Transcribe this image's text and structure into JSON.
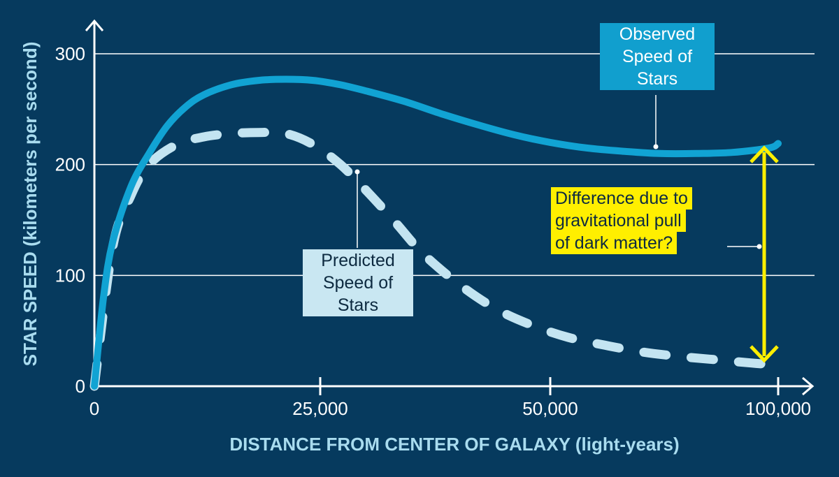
{
  "chart_data": {
    "type": "line",
    "xlabel": "DISTANCE FROM CENTER OF GALAXY",
    "xlabel_unit": "(light-years)",
    "ylabel": "STAR SPEED",
    "ylabel_unit": "(kilometers per second)",
    "x_tick_labels": [
      "0",
      "25,000",
      "50,000",
      "100,000"
    ],
    "y_tick_labels": [
      "0",
      "100",
      "200",
      "300"
    ],
    "y_ticks": [
      0,
      100,
      200,
      300
    ],
    "ylim": [
      0,
      300
    ],
    "grid": true,
    "series": [
      {
        "name": "Observed Speed of Stars",
        "style": "solid",
        "color": "#11a3d3",
        "points": [
          [
            0,
            0
          ],
          [
            1,
            80
          ],
          [
            2,
            130
          ],
          [
            4,
            180
          ],
          [
            6,
            210
          ],
          [
            8,
            235
          ],
          [
            10,
            252
          ],
          [
            12,
            263
          ],
          [
            15,
            272
          ],
          [
            18,
            276
          ],
          [
            21,
            277
          ],
          [
            24,
            276
          ],
          [
            27,
            272
          ],
          [
            30,
            266
          ],
          [
            34,
            257
          ],
          [
            38,
            246
          ],
          [
            42,
            236
          ],
          [
            46,
            227
          ],
          [
            50,
            220
          ],
          [
            54,
            215
          ],
          [
            58,
            212
          ],
          [
            62,
            210
          ],
          [
            66,
            210
          ],
          [
            70,
            211
          ],
          [
            74,
            215
          ],
          [
            75,
            219
          ]
        ]
      },
      {
        "name": "Predicted Speed of Stars",
        "style": "dashed",
        "color": "#c3e4f1",
        "points": [
          [
            0,
            0
          ],
          [
            2,
            125
          ],
          [
            4,
            172
          ],
          [
            6,
            200
          ],
          [
            9,
            218
          ],
          [
            12,
            225
          ],
          [
            15,
            228
          ],
          [
            18,
            229
          ],
          [
            21,
            228
          ],
          [
            24,
            218
          ],
          [
            27,
            200
          ],
          [
            30,
            175
          ],
          [
            33,
            148
          ],
          [
            36,
            120
          ],
          [
            40,
            92
          ],
          [
            44,
            70
          ],
          [
            48,
            55
          ],
          [
            52,
            44
          ],
          [
            56,
            37
          ],
          [
            60,
            31
          ],
          [
            64,
            27
          ],
          [
            68,
            24
          ],
          [
            72,
            21
          ],
          [
            75,
            19
          ]
        ]
      }
    ],
    "annotations": {
      "difference_text": [
        "Difference due to",
        "gravitational pull",
        "of dark matter?"
      ]
    },
    "colors": {
      "background": "#063a5e",
      "grid": "#ffffff",
      "difference_arrow": "#ffef00"
    }
  }
}
